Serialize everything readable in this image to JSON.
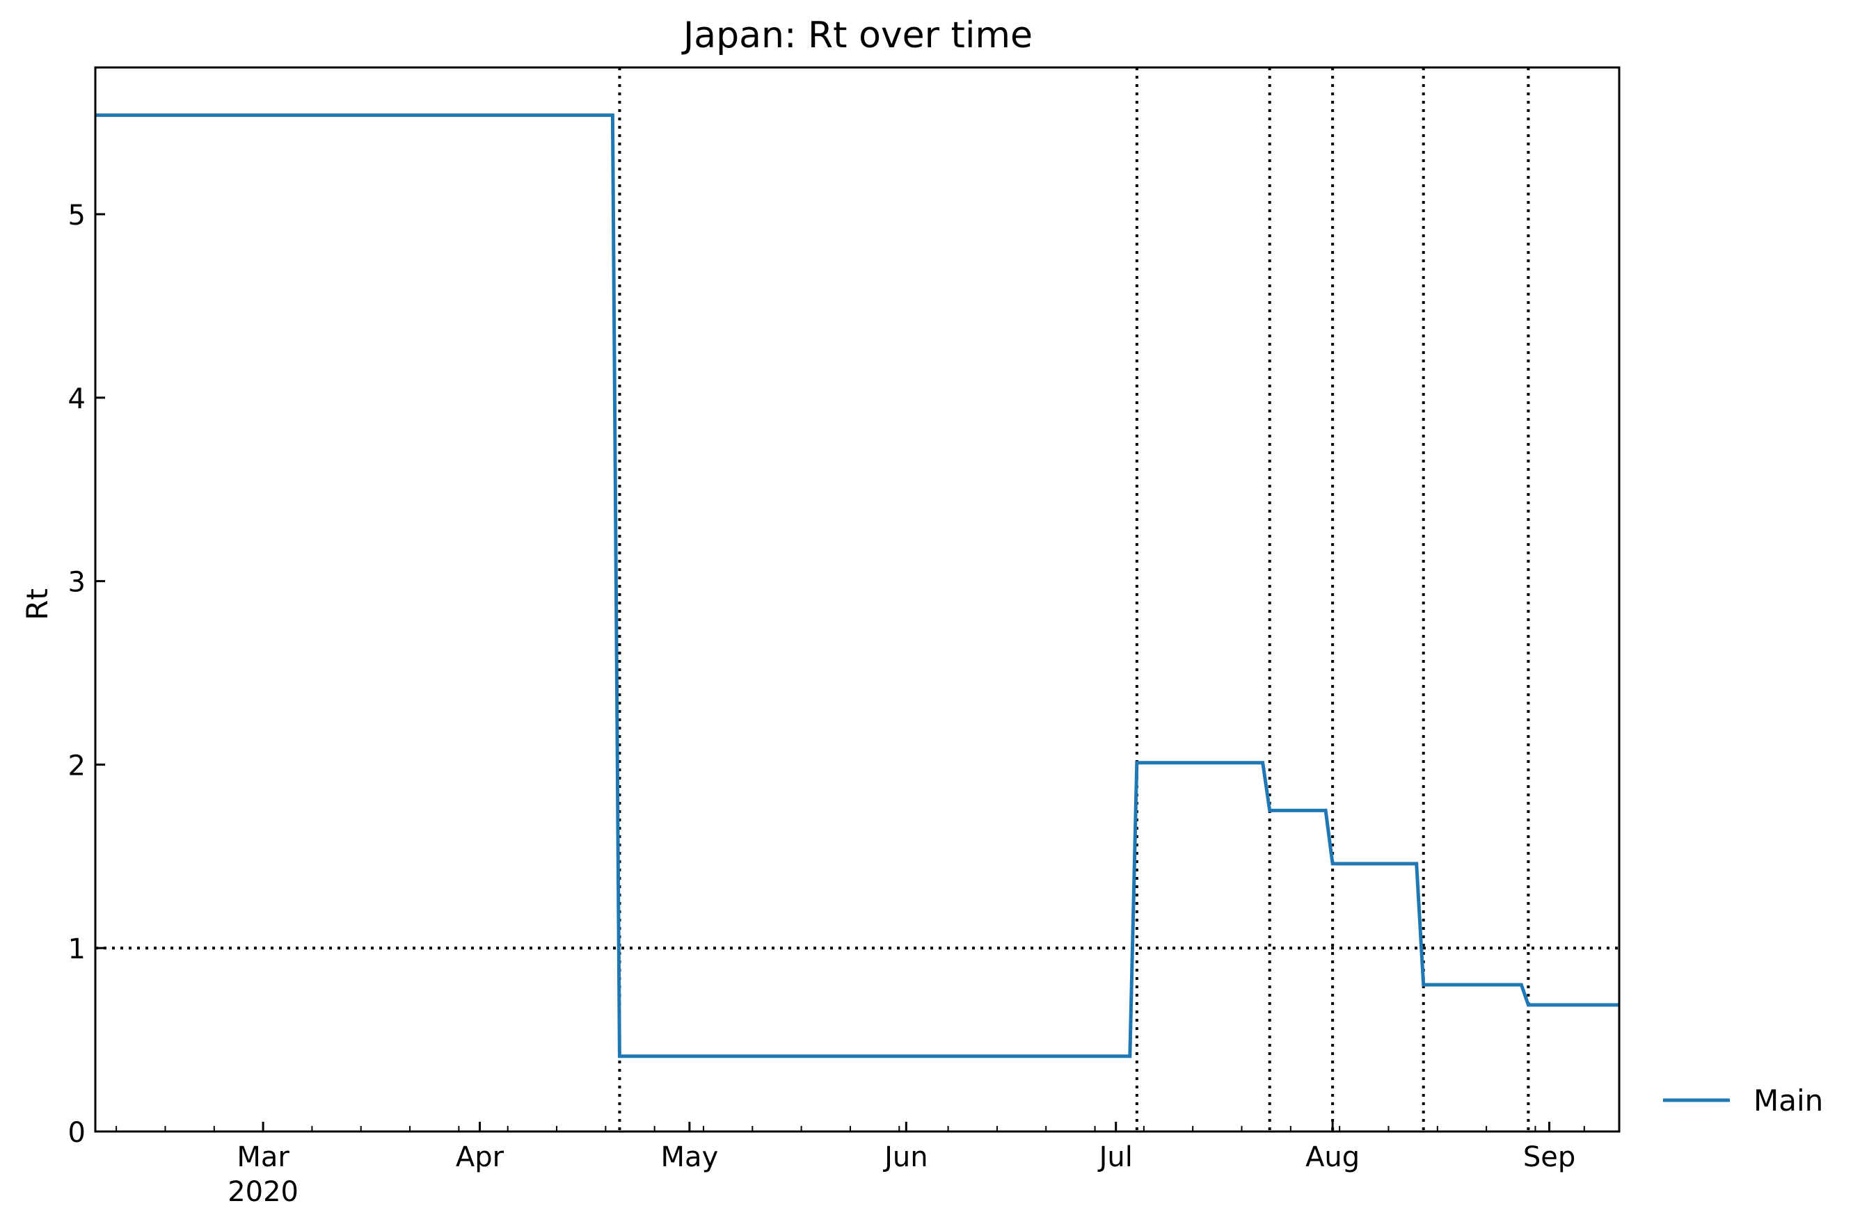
{
  "chart_data": {
    "type": "line",
    "title": "Japan: Rt over time",
    "xlabel": "",
    "ylabel": "Rt",
    "x_range": [
      "2020-02-06",
      "2020-09-11"
    ],
    "ylim": [
      0,
      5.8
    ],
    "x_ticks": [
      {
        "date": "2020-03-01",
        "label": "Mar",
        "sublabel": "2020"
      },
      {
        "date": "2020-04-01",
        "label": "Apr",
        "sublabel": ""
      },
      {
        "date": "2020-05-01",
        "label": "May",
        "sublabel": ""
      },
      {
        "date": "2020-06-01",
        "label": "Jun",
        "sublabel": ""
      },
      {
        "date": "2020-07-01",
        "label": "Jul",
        "sublabel": ""
      },
      {
        "date": "2020-08-01",
        "label": "Aug",
        "sublabel": ""
      },
      {
        "date": "2020-09-01",
        "label": "Sep",
        "sublabel": ""
      }
    ],
    "y_ticks": [
      0,
      1,
      2,
      3,
      4,
      5
    ],
    "grid": false,
    "legend_position": "outside-right-bottom",
    "reference_line": {
      "y": 1.0,
      "style": "dotted"
    },
    "phase_change_dates": [
      "2020-04-21",
      "2020-07-04",
      "2020-07-23",
      "2020-08-01",
      "2020-08-14",
      "2020-08-29"
    ],
    "series": [
      {
        "name": "Main",
        "color": "#1f77b4",
        "points": [
          {
            "x": "2020-02-06",
            "y": 5.54
          },
          {
            "x": "2020-04-20",
            "y": 5.54
          },
          {
            "x": "2020-04-21",
            "y": 0.41
          },
          {
            "x": "2020-07-03",
            "y": 0.41
          },
          {
            "x": "2020-07-04",
            "y": 2.01
          },
          {
            "x": "2020-07-22",
            "y": 2.01
          },
          {
            "x": "2020-07-23",
            "y": 1.75
          },
          {
            "x": "2020-07-31",
            "y": 1.75
          },
          {
            "x": "2020-08-01",
            "y": 1.46
          },
          {
            "x": "2020-08-13",
            "y": 1.46
          },
          {
            "x": "2020-08-14",
            "y": 0.8
          },
          {
            "x": "2020-08-28",
            "y": 0.8
          },
          {
            "x": "2020-08-29",
            "y": 0.69
          },
          {
            "x": "2020-09-11",
            "y": 0.69
          }
        ]
      }
    ]
  }
}
